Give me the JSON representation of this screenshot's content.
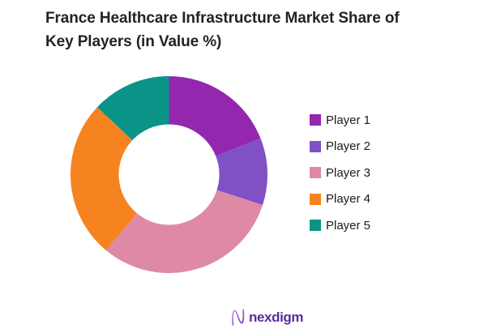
{
  "title": {
    "line1": "France Healthcare Infrastructure Market Share of",
    "line2": "Key Players (in Value %)"
  },
  "chart_data": {
    "type": "pie",
    "subtype": "donut",
    "title": "France Healthcare Infrastructure Market Share of Key Players (in Value %)",
    "unit": "% value share",
    "start_angle_deg": 0,
    "direction": "clockwise",
    "inner_radius_ratio": 0.51,
    "legend_position": "right",
    "data_labels_shown": false,
    "segments": [
      {
        "label": "Player 1",
        "value": 19,
        "color": "#9327AE"
      },
      {
        "label": "Player 2",
        "value": 11,
        "color": "#8050C5"
      },
      {
        "label": "Player 3",
        "value": 31,
        "color": "#DE8AA5"
      },
      {
        "label": "Player 4",
        "value": 26,
        "color": "#F6831F"
      },
      {
        "label": "Player 5",
        "value": 13,
        "color": "#0A9488"
      }
    ]
  },
  "footer": {
    "brand": "nexdigm",
    "logo_icon": "nexdigm-n-mark",
    "brand_color": "#5B2E9E",
    "mark_gradient_start": "#C2A4E6",
    "mark_gradient_end": "#7D2FB8"
  }
}
